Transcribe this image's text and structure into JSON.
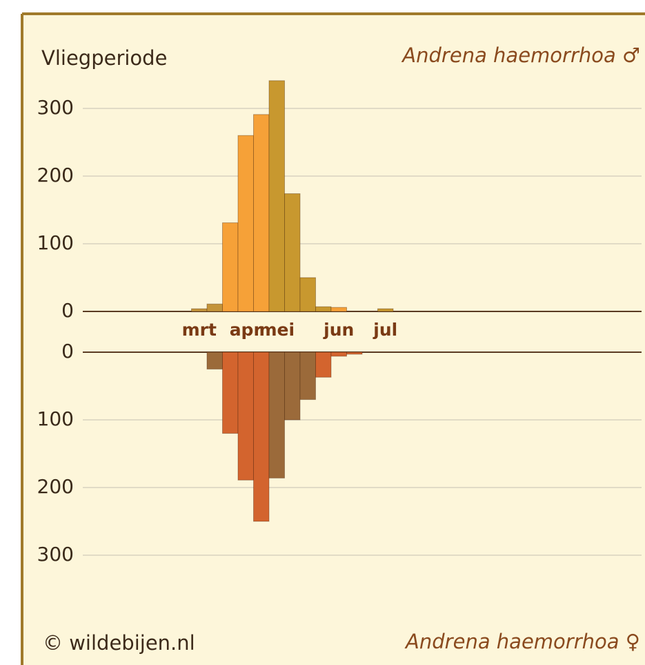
{
  "chart_data": [
    {
      "type": "bar",
      "title": "Vliegperiode",
      "categories": [
        null,
        null,
        null,
        null,
        null,
        null,
        null,
        "mrt",
        null,
        null,
        "apr",
        null,
        "mei",
        null,
        null,
        null,
        "jun",
        null,
        null,
        "jul",
        null,
        null,
        null,
        null,
        null,
        null,
        null,
        null,
        null,
        null,
        null,
        null,
        null,
        null,
        null,
        null
      ],
      "series": [
        {
          "name": "Andrena haemorrhoa ♂",
          "values": [
            null,
            null,
            null,
            null,
            null,
            null,
            null,
            4,
            11,
            131,
            260,
            291,
            341,
            174,
            50,
            7,
            6,
            null,
            null,
            4,
            null,
            null,
            null,
            null,
            null,
            null,
            null,
            null,
            null,
            null,
            null,
            null,
            null,
            null,
            null,
            null
          ],
          "colors": [
            null,
            null,
            null,
            null,
            null,
            null,
            null,
            "#c4943a",
            "#c4943a",
            "#f6a138",
            "#f6a138",
            "#f6a138",
            "#c8982f",
            "#c8982f",
            "#c8982f",
            "#c8982f",
            "#f6a138",
            null,
            null,
            "#c8982f",
            null,
            null,
            null,
            null,
            null,
            null,
            null,
            null,
            null,
            null,
            null,
            null,
            null,
            null,
            null,
            null
          ]
        }
      ],
      "ylim": [
        0,
        400
      ],
      "yticks": [
        0,
        100,
        200,
        300
      ],
      "grid": true
    },
    {
      "type": "bar",
      "credit": "© wildebijen.nl",
      "series": [
        {
          "name": "Andrena haemorrhoa ♀",
          "values": [
            null,
            null,
            null,
            null,
            null,
            null,
            null,
            null,
            25,
            120,
            189,
            250,
            186,
            100,
            70,
            37,
            6,
            3,
            null,
            null,
            null,
            null,
            null,
            null,
            null,
            null,
            null,
            null,
            null,
            null,
            null,
            null,
            null,
            null,
            null,
            null
          ],
          "colors": [
            null,
            null,
            null,
            null,
            null,
            null,
            null,
            null,
            "#9b6a3a",
            "#d3642e",
            "#d3642e",
            "#d3642e",
            "#9b6a3a",
            "#9b6a3a",
            "#9b6a3a",
            "#d3642e",
            "#d3642e",
            "#d3642e",
            null,
            null,
            null,
            null,
            null,
            null,
            null,
            null,
            null,
            null,
            null,
            null,
            null,
            null,
            null,
            null,
            null,
            null
          ]
        }
      ],
      "ylim": [
        0,
        400
      ],
      "yticks": [
        0,
        100,
        200,
        300
      ],
      "grid": true,
      "inverted": true
    }
  ]
}
